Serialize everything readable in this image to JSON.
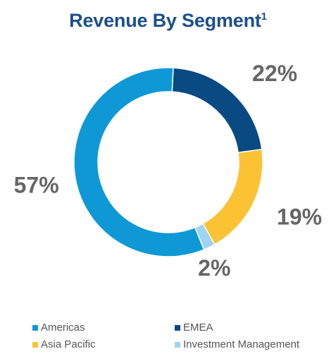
{
  "title": {
    "text": "Revenue By Segment",
    "superscript": "1"
  },
  "chart_data": {
    "type": "pie",
    "style": "donut",
    "title": "Revenue By Segment¹",
    "categories": [
      "Americas",
      "EMEA",
      "Asia Pacific",
      "Investment Management"
    ],
    "values": [
      57,
      22,
      19,
      2
    ],
    "value_labels": [
      "57%",
      "22%",
      "19%",
      "2%"
    ],
    "colors": [
      "#0e98d6",
      "#0a4a82",
      "#fbc233",
      "#9fd3f2"
    ],
    "legend_position": "bottom"
  },
  "legend": {
    "items": [
      {
        "label": "Americas",
        "color": "#0e98d6"
      },
      {
        "label": "EMEA",
        "color": "#0a4a82"
      },
      {
        "label": "Asia Pacific",
        "color": "#fbc233"
      },
      {
        "label": "Investment Management",
        "color": "#9fd3f2"
      }
    ]
  }
}
